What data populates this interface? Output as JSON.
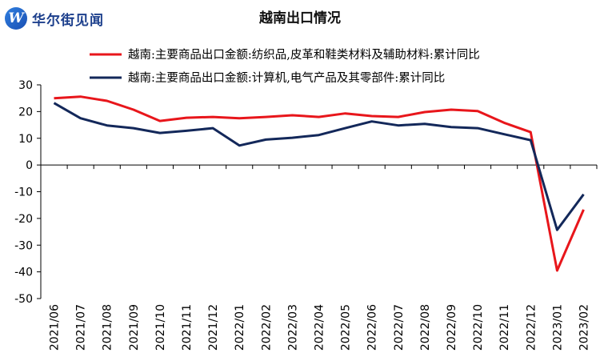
{
  "logo": {
    "text": "华尔街见闻",
    "icon": "W"
  },
  "chart_data": {
    "type": "line",
    "title": "越南出口情况",
    "x": [
      "2021/06",
      "2021/07",
      "2021/08",
      "2021/09",
      "2021/10",
      "2021/11",
      "2021/12",
      "2022/01",
      "2022/02",
      "2022/03",
      "2022/04",
      "2022/05",
      "2022/06",
      "2022/07",
      "2022/08",
      "2022/09",
      "2022/10",
      "2022/11",
      "2022/12",
      "2023/01",
      "2023/02"
    ],
    "ylim": [
      -50,
      30
    ],
    "yticks": [
      30,
      20,
      10,
      0,
      -10,
      -20,
      -30,
      -40,
      -50
    ],
    "legend_position": "top",
    "series": [
      {
        "name": "越南:主要商品出口金额:纺织品,皮革和鞋类材料及辅助材料:累计同比",
        "color": "#e8161b",
        "values": [
          25,
          25.6,
          24,
          20.7,
          16.5,
          17.7,
          18,
          17.5,
          18,
          18.6,
          18,
          19.3,
          18.3,
          18,
          19.8,
          20.7,
          20.2,
          15.8,
          12.3,
          -39.5,
          -16.7
        ]
      },
      {
        "name": "越南:主要商品出口金额:计算机,电气产品及其零部件:累计同比",
        "color": "#13285a",
        "values": [
          23.2,
          17.5,
          14.8,
          13.8,
          12,
          12.8,
          13.8,
          7.3,
          9.5,
          10.2,
          11.2,
          13.8,
          16.3,
          14.8,
          15.4,
          14.2,
          13.8,
          11.5,
          9.3,
          -24.3,
          -11
        ]
      }
    ]
  }
}
